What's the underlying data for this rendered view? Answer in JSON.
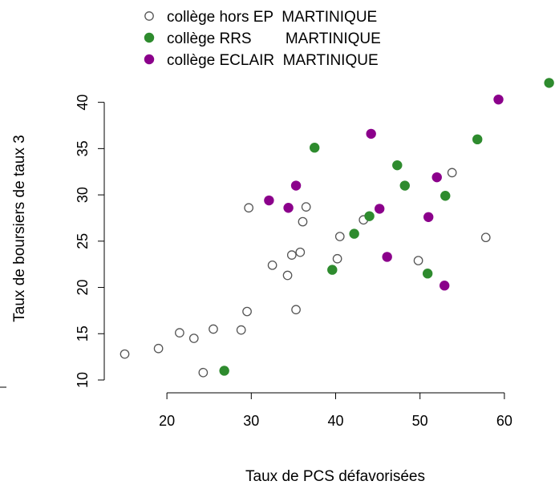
{
  "chart_data": {
    "type": "scatter",
    "title": "",
    "xlabel": "Taux de PCS défavorisées",
    "ylabel": "Taux de boursiers de taux 3",
    "xlim": [
      14,
      66
    ],
    "ylim": [
      10,
      43
    ],
    "xticks": [
      20,
      30,
      40,
      50,
      60
    ],
    "yticks": [
      10,
      15,
      20,
      25,
      30,
      35,
      40
    ],
    "legend_position": "top",
    "series": [
      {
        "name": "collège hors EP  MARTINIQUE",
        "marker": "open-circle",
        "color": "#555555",
        "points": [
          [
            15.0,
            12.8
          ],
          [
            19.0,
            13.4
          ],
          [
            21.5,
            15.1
          ],
          [
            23.2,
            14.5
          ],
          [
            24.3,
            10.8
          ],
          [
            25.5,
            15.5
          ],
          [
            28.8,
            15.4
          ],
          [
            29.5,
            17.4
          ],
          [
            29.7,
            28.6
          ],
          [
            32.5,
            22.4
          ],
          [
            34.3,
            21.3
          ],
          [
            34.8,
            23.5
          ],
          [
            35.3,
            17.6
          ],
          [
            35.8,
            23.8
          ],
          [
            36.1,
            27.1
          ],
          [
            36.5,
            28.7
          ],
          [
            40.2,
            23.1
          ],
          [
            40.5,
            25.5
          ],
          [
            43.3,
            27.3
          ],
          [
            49.8,
            22.9
          ],
          [
            53.8,
            32.4
          ],
          [
            57.8,
            25.4
          ]
        ]
      },
      {
        "name": "collège RRS        MARTINIQUE",
        "marker": "filled-circle",
        "color": "#2e8b2e",
        "points": [
          [
            26.8,
            11.0
          ],
          [
            37.5,
            35.1
          ],
          [
            39.6,
            21.9
          ],
          [
            42.2,
            25.8
          ],
          [
            44.0,
            27.7
          ],
          [
            47.3,
            33.2
          ],
          [
            48.2,
            31.0
          ],
          [
            50.9,
            21.5
          ],
          [
            53.0,
            29.9
          ],
          [
            56.8,
            36.0
          ],
          [
            65.3,
            42.1
          ]
        ]
      },
      {
        "name": "collège ECLAIR  MARTINIQUE",
        "marker": "filled-circle",
        "color": "#8b008b",
        "points": [
          [
            32.1,
            29.4
          ],
          [
            34.4,
            28.6
          ],
          [
            35.3,
            31.0
          ],
          [
            44.2,
            36.6
          ],
          [
            45.2,
            28.5
          ],
          [
            46.1,
            23.3
          ],
          [
            51.0,
            27.6
          ],
          [
            52.0,
            31.9
          ],
          [
            52.9,
            20.2
          ],
          [
            59.3,
            40.3
          ]
        ]
      }
    ]
  }
}
